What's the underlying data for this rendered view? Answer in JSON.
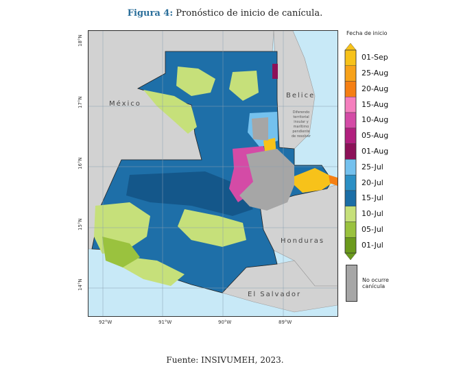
{
  "caption": {
    "figure_label": "Figura 4:",
    "title": "Pronóstico de inicio de canícula."
  },
  "map": {
    "lat_labels": [
      "18°N",
      "17°N",
      "16°N",
      "15°N",
      "14°N"
    ],
    "lon_labels": [
      "92°W",
      "91°W",
      "90°W",
      "89°W"
    ],
    "country_labels": {
      "mexico": "México",
      "belice": "Belice",
      "honduras": "Honduras",
      "el_salvador": "El Salvador"
    },
    "disputed_note": [
      "Diferendo",
      "territorial",
      "insular y",
      "marítimo",
      "pendiente",
      "de resolver"
    ]
  },
  "legend": {
    "title": "Fecha de inicio",
    "items": [
      {
        "label": "01-Sep",
        "color": "#f7c21a"
      },
      {
        "label": "25-Aug",
        "color": "#f7a21a"
      },
      {
        "label": "20-Aug",
        "color": "#f57f13"
      },
      {
        "label": "15-Aug",
        "color": "#f57fbe"
      },
      {
        "label": "10-Aug",
        "color": "#d44ba6"
      },
      {
        "label": "05-Aug",
        "color": "#b1207e"
      },
      {
        "label": "01-Aug",
        "color": "#8c1158"
      },
      {
        "label": "25-Jul",
        "color": "#74c1ee"
      },
      {
        "label": "20-Jul",
        "color": "#2b8fc4"
      },
      {
        "label": "15-Jul",
        "color": "#1b6ea6"
      },
      {
        "label": "10-Jul",
        "color": "#c6e07a"
      },
      {
        "label": "05-Jul",
        "color": "#9ac23e"
      },
      {
        "label": "01-Jul",
        "color": "#6b9a1c"
      }
    ],
    "no_canicula": {
      "label_line1": "No ocurre",
      "label_line2": "canícula",
      "color": "#a6a6a6"
    }
  },
  "source": "Fuente: INSIVUMEH, 2023."
}
